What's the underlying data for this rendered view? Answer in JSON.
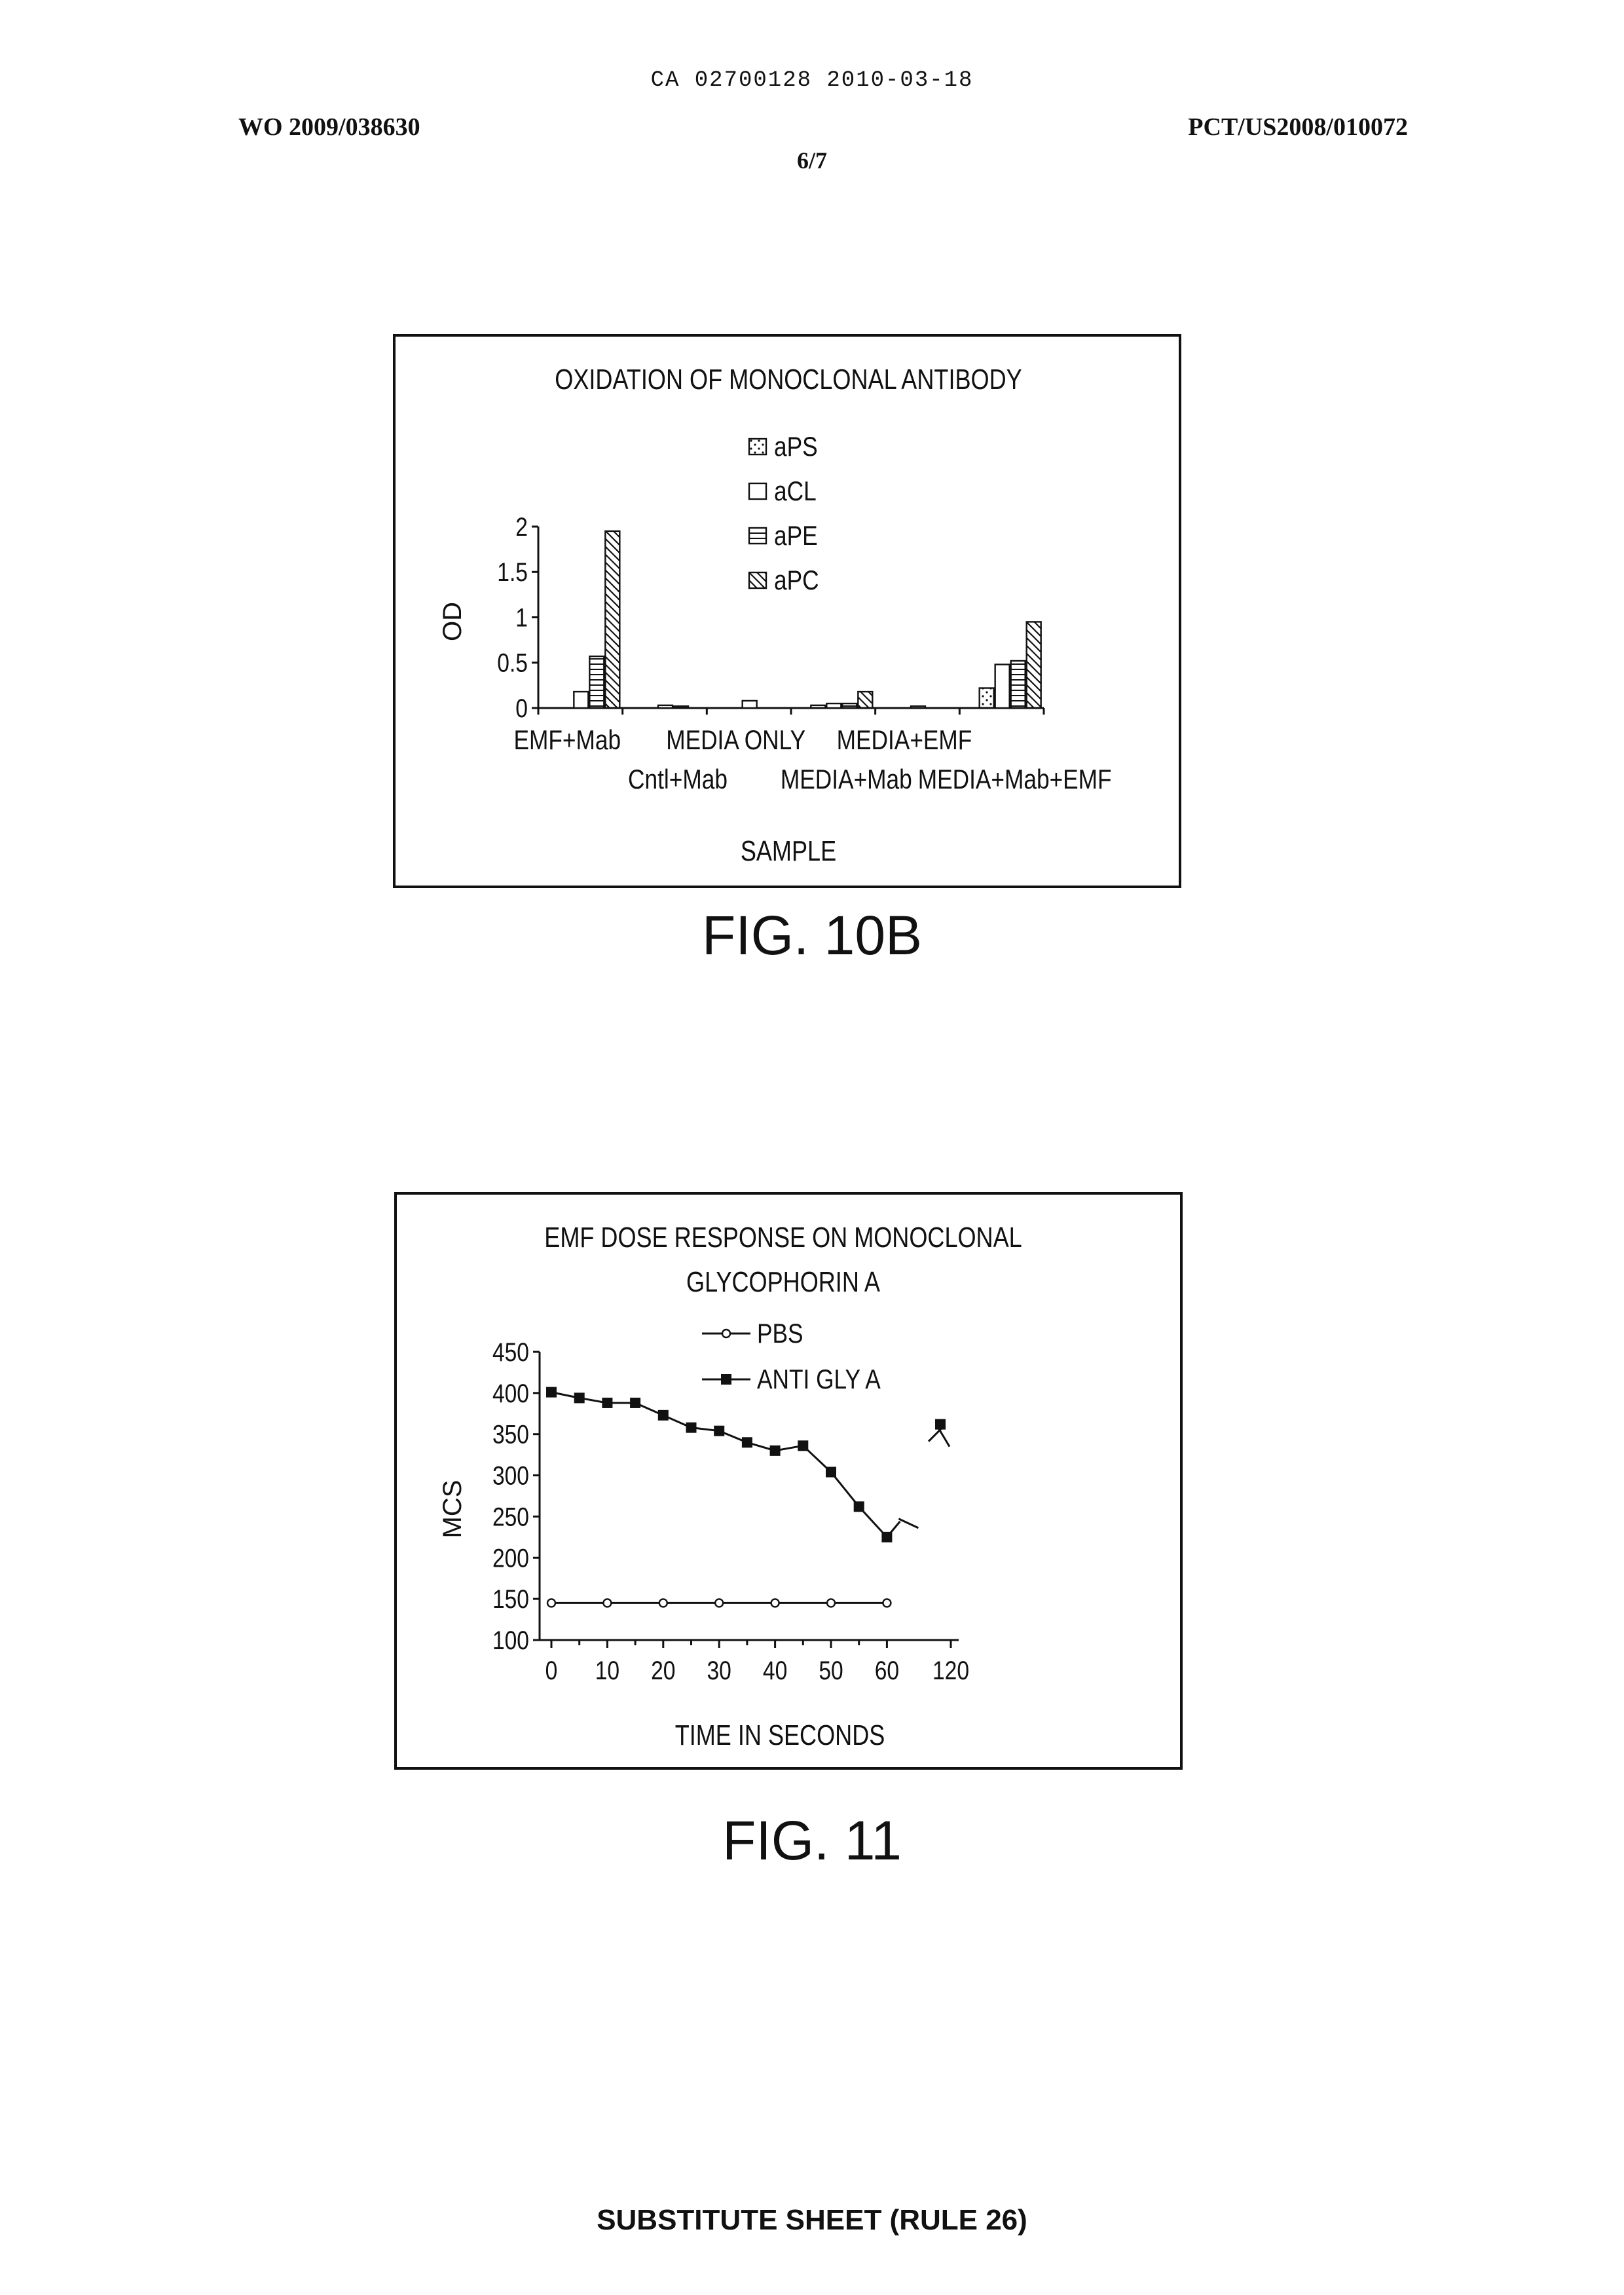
{
  "header": {
    "doc_id": "CA 02700128 2010-03-18",
    "pub_number": "WO 2009/038630",
    "app_number": "PCT/US2008/010072",
    "page": "6/7"
  },
  "footer": {
    "text": "SUBSTITUTE SHEET (RULE 26)"
  },
  "figures": [
    {
      "caption": "FIG. 10B"
    },
    {
      "caption": "FIG. 11"
    }
  ],
  "chart_data": [
    {
      "type": "bar",
      "title": "OXIDATION OF MONOCLONAL ANTIBODY",
      "xlabel": "SAMPLE",
      "ylabel": "OD",
      "ylim": [
        0,
        2
      ],
      "yticks": [
        "0",
        "0.5",
        "1",
        "1.5",
        "2"
      ],
      "legend_position": "top-center",
      "categories": [
        "EMF+Mab",
        "Cntl+Mab",
        "MEDIA ONLY",
        "MEDIA+Mab",
        "MEDIA+EMF",
        "MEDIA+Mab+EMF"
      ],
      "series": [
        {
          "name": "aPS",
          "pattern": "dots",
          "values": [
            0.0,
            0.0,
            0.0,
            0.03,
            0.0,
            0.22
          ]
        },
        {
          "name": "aCL",
          "pattern": "empty",
          "values": [
            0.18,
            0.03,
            0.08,
            0.05,
            0.02,
            0.48
          ]
        },
        {
          "name": "aPE",
          "pattern": "horizontal",
          "values": [
            0.57,
            0.02,
            0.0,
            0.05,
            0.0,
            0.52
          ]
        },
        {
          "name": "aPC",
          "pattern": "diagonal",
          "values": [
            1.95,
            0.0,
            0.0,
            0.18,
            0.0,
            0.95
          ]
        }
      ]
    },
    {
      "type": "line",
      "title_lines": [
        "EMF DOSE RESPONSE ON MONOCLONAL",
        "GLYCOPHORIN A"
      ],
      "xlabel": "TIME IN SECONDS",
      "ylabel": "MCS",
      "ylim": [
        100,
        450
      ],
      "yticks": [
        "100",
        "150",
        "200",
        "250",
        "300",
        "350",
        "400",
        "450"
      ],
      "xtick_labels": [
        "0",
        "10",
        "20",
        "30",
        "40",
        "50",
        "60",
        "120"
      ],
      "legend_position": "top-center",
      "series": [
        {
          "name": "PBS",
          "marker": "open-circle",
          "x": [
            0,
            10,
            20,
            30,
            40,
            50,
            60
          ],
          "y": [
            145,
            145,
            145,
            145,
            145,
            145,
            145
          ]
        },
        {
          "name": "ANTI GLY A",
          "marker": "filled-square",
          "x": [
            0,
            5,
            10,
            15,
            20,
            25,
            30,
            35,
            40,
            45,
            50,
            55,
            60,
            120
          ],
          "y": [
            401,
            394,
            388,
            388,
            373,
            358,
            354,
            340,
            330,
            336,
            304,
            262,
            225,
            362
          ]
        }
      ]
    }
  ]
}
